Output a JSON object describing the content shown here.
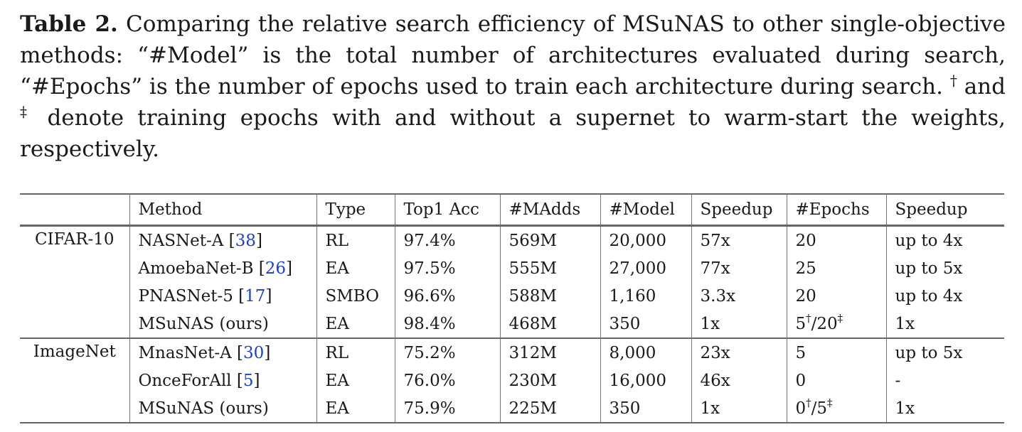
{
  "caption": {
    "label": "Table 2.",
    "text_1": " Comparing the relative search efficiency of MSuNAS to other single-objective methods: “#Model” is the total number of architectures evaluated during search, “#Epochs” is the number of epochs used to train each architecture during search. ",
    "dagger": "†",
    "text_2": " and ",
    "ddagger": "‡",
    "text_3": " denote training epochs with and without a supernet to warm-start the weights, respectively."
  },
  "table": {
    "headers": [
      "",
      "Method",
      "Type",
      "Top1 Acc",
      "#MAdds",
      "#Model",
      "Speedup",
      "#Epochs",
      "Speedup"
    ],
    "groups": [
      {
        "name": "CIFAR-10",
        "rows": [
          {
            "method": "NASNet-A",
            "ref": "38",
            "type": "RL",
            "top1": "97.4%",
            "madds": "569M",
            "model": "20,000",
            "speedup1": "57x",
            "epochs": {
              "a": "20"
            },
            "speedup2": "up to 4x"
          },
          {
            "method": "AmoebaNet-B",
            "ref": "26",
            "type": "EA",
            "top1": "97.5%",
            "madds": "555M",
            "model": "27,000",
            "speedup1": "77x",
            "epochs": {
              "a": "25"
            },
            "speedup2": "up to 5x"
          },
          {
            "method": "PNASNet-5",
            "ref": "17",
            "type": "SMBO",
            "top1": "96.6%",
            "madds": "588M",
            "model": "1,160",
            "speedup1": "3.3x",
            "epochs": {
              "a": "20"
            },
            "speedup2": "up to 4x"
          },
          {
            "method": "MSuNAS (ours)",
            "ref": "",
            "type": "EA",
            "top1": "98.4%",
            "madds": "468M",
            "model": "350",
            "speedup1": "1x",
            "epochs": {
              "a": "5",
              "sa": "†",
              "sep": "/",
              "b": "20",
              "sb": "‡"
            },
            "speedup2": "1x"
          }
        ]
      },
      {
        "name": "ImageNet",
        "rows": [
          {
            "method": "MnasNet-A",
            "ref": "30",
            "type": "RL",
            "top1": "75.2%",
            "madds": "312M",
            "model": "8,000",
            "speedup1": "23x",
            "epochs": {
              "a": "5"
            },
            "speedup2": "up to 5x"
          },
          {
            "method": "OnceForAll",
            "ref": "5",
            "type": "EA",
            "top1": "76.0%",
            "madds": "230M",
            "model": "16,000",
            "speedup1": "46x",
            "epochs": {
              "a": "0"
            },
            "speedup2": "-"
          },
          {
            "method": "MSuNAS (ours)",
            "ref": "",
            "type": "EA",
            "top1": "75.9%",
            "madds": "225M",
            "model": "350",
            "speedup1": "1x",
            "epochs": {
              "a": "0",
              "sa": "†",
              "sep": "/",
              "b": "5",
              "sb": "‡"
            },
            "speedup2": "1x"
          }
        ]
      }
    ]
  }
}
